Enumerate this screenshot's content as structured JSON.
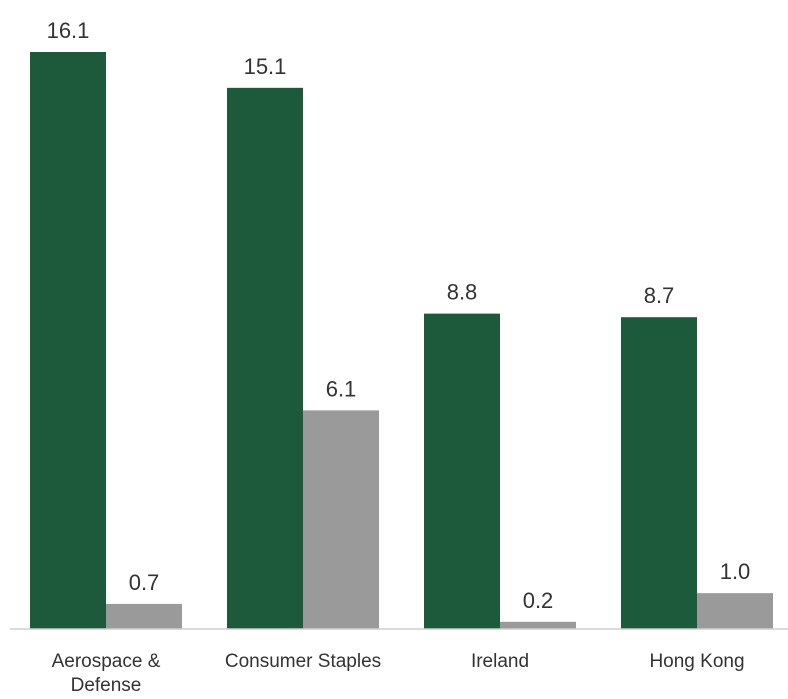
{
  "chart_data": {
    "type": "bar",
    "categories": [
      "Aerospace & Defense",
      "Consumer Staples",
      "Ireland",
      "Hong Kong"
    ],
    "category_lines": [
      [
        "Aerospace &",
        "Defense"
      ],
      [
        "Consumer Staples"
      ],
      [
        "Ireland"
      ],
      [
        "Hong Kong"
      ]
    ],
    "series": [
      {
        "values": [
          16.1,
          15.1,
          8.8,
          8.7
        ],
        "color": "#1d5a3c"
      },
      {
        "values": [
          0.7,
          6.1,
          0.2,
          1.0
        ],
        "color": "#9a9a9a"
      }
    ],
    "value_labels": [
      [
        "16.1",
        "15.1",
        "8.8",
        "8.7"
      ],
      [
        "0.7",
        "6.1",
        "0.2",
        "1.0"
      ]
    ],
    "ylim": [
      0,
      16.1
    ],
    "grid": false,
    "legend": "none"
  }
}
